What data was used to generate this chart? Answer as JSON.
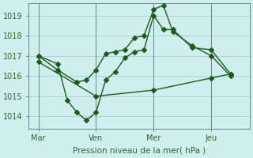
{
  "xlabel": "Pression niveau de la mer( hPa )",
  "bg_color": "#d0eeee",
  "grid_color": "#aad4d4",
  "line_color": "#1a5c1a",
  "xtick_labels": [
    "Mar",
    "Ven",
    "Mer",
    "Jeu"
  ],
  "xtick_positions": [
    0,
    3,
    6,
    9
  ],
  "ytick_values": [
    1014,
    1015,
    1016,
    1017,
    1018,
    1019
  ],
  "ylim": [
    1013.4,
    1019.6
  ],
  "xlim": [
    -0.5,
    11.0
  ],
  "series": [
    {
      "x": [
        0,
        1,
        2,
        2.5,
        3,
        3.5,
        4,
        4.5,
        5,
        5.5,
        6,
        6.5,
        7,
        8,
        9,
        10
      ],
      "y": [
        1017.0,
        1016.3,
        1015.7,
        1015.8,
        1016.3,
        1017.1,
        1017.2,
        1017.3,
        1017.9,
        1018.0,
        1019.3,
        1019.5,
        1018.2,
        1017.5,
        1017.0,
        1016.0
      ]
    },
    {
      "x": [
        0,
        1,
        1.5,
        2,
        2.5,
        3,
        3.5,
        4,
        4.5,
        5,
        5.5,
        6,
        6.5,
        7,
        8,
        9,
        10
      ],
      "y": [
        1017.0,
        1016.6,
        1014.8,
        1014.2,
        1013.8,
        1014.2,
        1015.8,
        1016.2,
        1016.9,
        1017.2,
        1017.3,
        1019.0,
        1018.3,
        1018.3,
        1017.4,
        1017.3,
        1016.1
      ]
    },
    {
      "x": [
        0,
        3,
        6,
        9,
        10
      ],
      "y": [
        1016.7,
        1015.0,
        1015.3,
        1015.9,
        1016.1
      ]
    }
  ],
  "vline_positions": [
    0,
    3,
    6,
    9
  ],
  "font_color": "#2a6c2a",
  "marker": "D",
  "markersize": 3.0,
  "linewidth": 1.0
}
